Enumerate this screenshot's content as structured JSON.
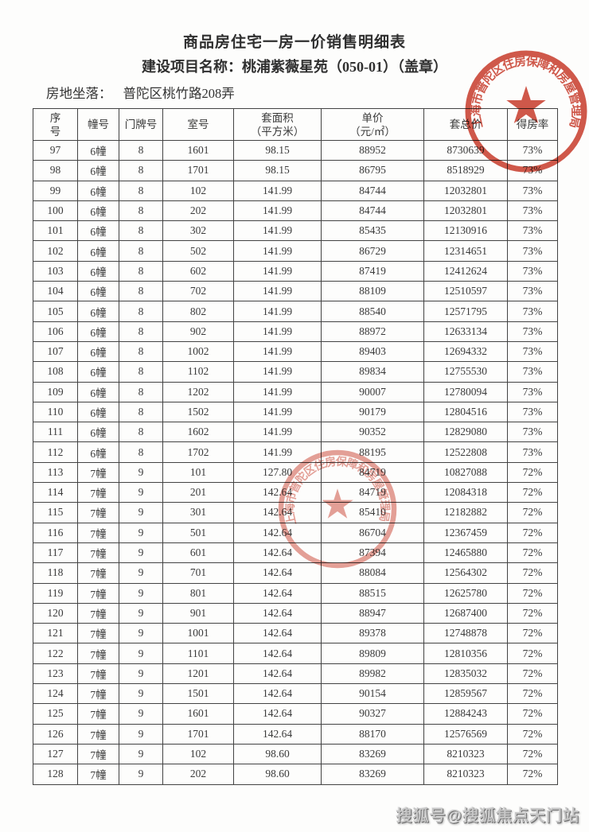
{
  "doc": {
    "title": "商品房住宅一房一价销售明细表",
    "project_line": "建设项目名称：桃浦紫薇星苑（050-01）（盖章）",
    "location_label": "房地坐落：",
    "location_value": "普陀区桃竹路208弄"
  },
  "table": {
    "headers": [
      {
        "line1": "序",
        "line2": "号"
      },
      {
        "line1": "幢号",
        "line2": ""
      },
      {
        "line1": "门牌号",
        "line2": ""
      },
      {
        "line1": "室号",
        "line2": ""
      },
      {
        "line1": "套面积",
        "line2": "（平方米）"
      },
      {
        "line1": "单价",
        "line2": "（元/㎡）"
      },
      {
        "line1": "套总价",
        "line2": ""
      },
      {
        "line1": "得房率",
        "line2": ""
      }
    ],
    "rows": [
      [
        "97",
        "6幢",
        "8",
        "1601",
        "98.15",
        "88952",
        "8730639",
        "73%"
      ],
      [
        "98",
        "6幢",
        "8",
        "1701",
        "98.15",
        "86795",
        "8518929",
        "73%"
      ],
      [
        "99",
        "6幢",
        "8",
        "102",
        "141.99",
        "84744",
        "12032801",
        "73%"
      ],
      [
        "100",
        "6幢",
        "8",
        "202",
        "141.99",
        "84744",
        "12032801",
        "73%"
      ],
      [
        "101",
        "6幢",
        "8",
        "302",
        "141.99",
        "85435",
        "12130916",
        "73%"
      ],
      [
        "102",
        "6幢",
        "8",
        "502",
        "141.99",
        "86729",
        "12314651",
        "73%"
      ],
      [
        "103",
        "6幢",
        "8",
        "602",
        "141.99",
        "87419",
        "12412624",
        "73%"
      ],
      [
        "104",
        "6幢",
        "8",
        "702",
        "141.99",
        "88109",
        "12510597",
        "73%"
      ],
      [
        "105",
        "6幢",
        "8",
        "802",
        "141.99",
        "88540",
        "12571795",
        "73%"
      ],
      [
        "106",
        "6幢",
        "8",
        "902",
        "141.99",
        "88972",
        "12633134",
        "73%"
      ],
      [
        "107",
        "6幢",
        "8",
        "1002",
        "141.99",
        "89403",
        "12694332",
        "73%"
      ],
      [
        "108",
        "6幢",
        "8",
        "1102",
        "141.99",
        "89834",
        "12755530",
        "73%"
      ],
      [
        "109",
        "6幢",
        "8",
        "1202",
        "141.99",
        "90007",
        "12780094",
        "73%"
      ],
      [
        "110",
        "6幢",
        "8",
        "1502",
        "141.99",
        "90179",
        "12804516",
        "73%"
      ],
      [
        "111",
        "6幢",
        "8",
        "1602",
        "141.99",
        "90352",
        "12829080",
        "73%"
      ],
      [
        "112",
        "6幢",
        "8",
        "1702",
        "141.99",
        "88195",
        "12522808",
        "73%"
      ],
      [
        "113",
        "7幢",
        "9",
        "101",
        "127.80",
        "84719",
        "10827088",
        "72%"
      ],
      [
        "114",
        "7幢",
        "9",
        "201",
        "142.64",
        "84719",
        "12084318",
        "72%"
      ],
      [
        "115",
        "7幢",
        "9",
        "301",
        "142.64",
        "85410",
        "12182882",
        "72%"
      ],
      [
        "116",
        "7幢",
        "9",
        "501",
        "142.64",
        "86704",
        "12367459",
        "72%"
      ],
      [
        "117",
        "7幢",
        "9",
        "601",
        "142.64",
        "87394",
        "12465880",
        "72%"
      ],
      [
        "118",
        "7幢",
        "9",
        "701",
        "142.64",
        "88084",
        "12564302",
        "72%"
      ],
      [
        "119",
        "7幢",
        "9",
        "801",
        "142.64",
        "88515",
        "12625780",
        "72%"
      ],
      [
        "120",
        "7幢",
        "9",
        "901",
        "142.64",
        "88947",
        "12687400",
        "72%"
      ],
      [
        "121",
        "7幢",
        "9",
        "1001",
        "142.64",
        "89378",
        "12748878",
        "72%"
      ],
      [
        "122",
        "7幢",
        "9",
        "1101",
        "142.64",
        "89809",
        "12810356",
        "72%"
      ],
      [
        "123",
        "7幢",
        "9",
        "1201",
        "142.64",
        "89982",
        "12835032",
        "72%"
      ],
      [
        "124",
        "7幢",
        "9",
        "1501",
        "142.64",
        "90154",
        "12859567",
        "72%"
      ],
      [
        "125",
        "7幢",
        "9",
        "1601",
        "142.64",
        "90327",
        "12884243",
        "72%"
      ],
      [
        "126",
        "7幢",
        "9",
        "1701",
        "142.64",
        "88170",
        "12576569",
        "72%"
      ],
      [
        "127",
        "7幢",
        "9",
        "102",
        "98.60",
        "83269",
        "8210323",
        "72%"
      ],
      [
        "128",
        "7幢",
        "9",
        "202",
        "98.60",
        "83269",
        "8210323",
        "72%"
      ]
    ]
  },
  "stamps": {
    "seal_text": "上海市普陀区住房保障和房屋管理局",
    "color": "#cb4232",
    "icons": {
      "seal_star": "★"
    }
  },
  "watermark": {
    "text": "搜狐号@搜狐焦点天门站"
  }
}
